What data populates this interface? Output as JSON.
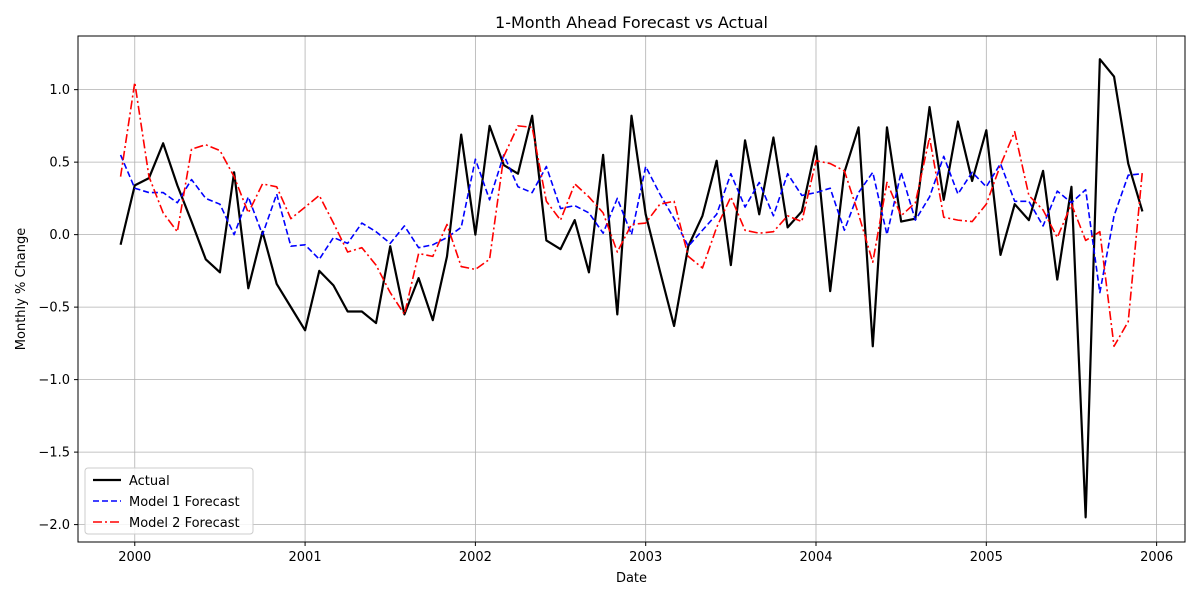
{
  "chart_data": {
    "type": "line",
    "title": "1-Month Ahead Forecast vs Actual",
    "xlabel": "Date",
    "ylabel": "Monthly % Change",
    "x_tick_labels": [
      "2000",
      "2001",
      "2002",
      "2003",
      "2004",
      "2005",
      "2006"
    ],
    "y_tick_labels": [
      "1.0",
      "0.5",
      "0.0",
      "−0.5",
      "−1.0",
      "−1.5",
      "−2.0"
    ],
    "xlim": [
      "1999-09",
      "2006-03"
    ],
    "ylim": [
      -2.12,
      1.37
    ],
    "grid": true,
    "legend_position": "lower-left",
    "x": [
      "1999-12",
      "2000-01",
      "2000-02",
      "2000-03",
      "2000-04",
      "2000-05",
      "2000-06",
      "2000-07",
      "2000-08",
      "2000-09",
      "2000-10",
      "2000-11",
      "2000-12",
      "2001-01",
      "2001-02",
      "2001-03",
      "2001-04",
      "2001-05",
      "2001-06",
      "2001-07",
      "2001-08",
      "2001-09",
      "2001-10",
      "2001-11",
      "2001-12",
      "2002-01",
      "2002-02",
      "2002-03",
      "2002-04",
      "2002-05",
      "2002-06",
      "2002-07",
      "2002-08",
      "2002-09",
      "2002-10",
      "2002-11",
      "2002-12",
      "2003-01",
      "2003-02",
      "2003-03",
      "2003-04",
      "2003-05",
      "2003-06",
      "2003-07",
      "2003-08",
      "2003-09",
      "2003-10",
      "2003-11",
      "2003-12",
      "2004-01",
      "2004-02",
      "2004-03",
      "2004-04",
      "2004-05",
      "2004-06",
      "2004-07",
      "2004-08",
      "2004-09",
      "2004-10",
      "2004-11",
      "2004-12",
      "2005-01",
      "2005-02",
      "2005-03",
      "2005-04",
      "2005-05",
      "2005-06",
      "2005-07",
      "2005-08",
      "2005-09",
      "2005-10",
      "2005-11",
      "2005-12"
    ],
    "series": [
      {
        "name": "Actual",
        "color": "#000000",
        "style": "solid",
        "values": [
          -0.07,
          0.34,
          0.39,
          0.63,
          0.34,
          0.09,
          -0.17,
          -0.26,
          0.43,
          -0.37,
          0.02,
          -0.34,
          -0.5,
          -0.66,
          -0.25,
          -0.35,
          -0.53,
          -0.53,
          -0.61,
          -0.08,
          -0.55,
          -0.3,
          -0.59,
          -0.15,
          0.69,
          0.0,
          0.75,
          0.48,
          0.42,
          0.82,
          -0.04,
          -0.1,
          0.1,
          -0.26,
          0.55,
          -0.55,
          0.82,
          0.14,
          -0.25,
          -0.63,
          -0.08,
          0.13,
          0.51,
          -0.21,
          0.65,
          0.14,
          0.67,
          0.05,
          0.16,
          0.61,
          -0.39,
          0.43,
          0.74,
          -0.77,
          0.74,
          0.09,
          0.11,
          0.88,
          0.24,
          0.78,
          0.37,
          0.72,
          -0.14,
          0.21,
          0.1,
          0.44,
          -0.31,
          0.33,
          -1.95,
          1.21,
          1.09,
          0.49,
          0.16
        ]
      },
      {
        "name": "Model 1 Forecast",
        "color": "#0000ff",
        "style": "dashed",
        "values": [
          0.55,
          0.32,
          0.29,
          0.29,
          0.22,
          0.38,
          0.25,
          0.21,
          0.0,
          0.26,
          0.0,
          0.28,
          -0.08,
          -0.07,
          -0.17,
          -0.02,
          -0.06,
          0.08,
          0.02,
          -0.06,
          0.06,
          -0.09,
          -0.07,
          -0.02,
          0.05,
          0.52,
          0.24,
          0.55,
          0.33,
          0.29,
          0.47,
          0.18,
          0.2,
          0.15,
          0.01,
          0.25,
          0.0,
          0.47,
          0.28,
          0.11,
          -0.08,
          0.03,
          0.14,
          0.42,
          0.19,
          0.36,
          0.13,
          0.42,
          0.27,
          0.29,
          0.32,
          0.03,
          0.29,
          0.43,
          0.0,
          0.43,
          0.1,
          0.26,
          0.54,
          0.28,
          0.43,
          0.33,
          0.49,
          0.23,
          0.23,
          0.06,
          0.3,
          0.22,
          0.31,
          -0.4,
          0.13,
          0.41,
          0.42
        ]
      },
      {
        "name": "Model 2 Forecast",
        "color": "#ff0000",
        "style": "dashdot",
        "values": [
          0.4,
          1.05,
          0.4,
          0.15,
          0.02,
          0.59,
          0.62,
          0.58,
          0.4,
          0.15,
          0.35,
          0.33,
          0.11,
          0.19,
          0.27,
          0.08,
          -0.12,
          -0.09,
          -0.21,
          -0.4,
          -0.55,
          -0.13,
          -0.15,
          0.07,
          -0.22,
          -0.24,
          -0.17,
          0.54,
          0.75,
          0.74,
          0.23,
          0.1,
          0.35,
          0.26,
          0.15,
          -0.12,
          0.07,
          0.08,
          0.21,
          0.23,
          -0.15,
          -0.23,
          0.05,
          0.26,
          0.03,
          0.01,
          0.02,
          0.13,
          0.09,
          0.51,
          0.49,
          0.44,
          0.14,
          -0.19,
          0.36,
          0.13,
          0.22,
          0.67,
          0.12,
          0.1,
          0.09,
          0.21,
          0.48,
          0.71,
          0.27,
          0.17,
          -0.02,
          0.21,
          -0.04,
          0.02,
          -0.77,
          -0.6,
          0.44
        ]
      }
    ]
  }
}
